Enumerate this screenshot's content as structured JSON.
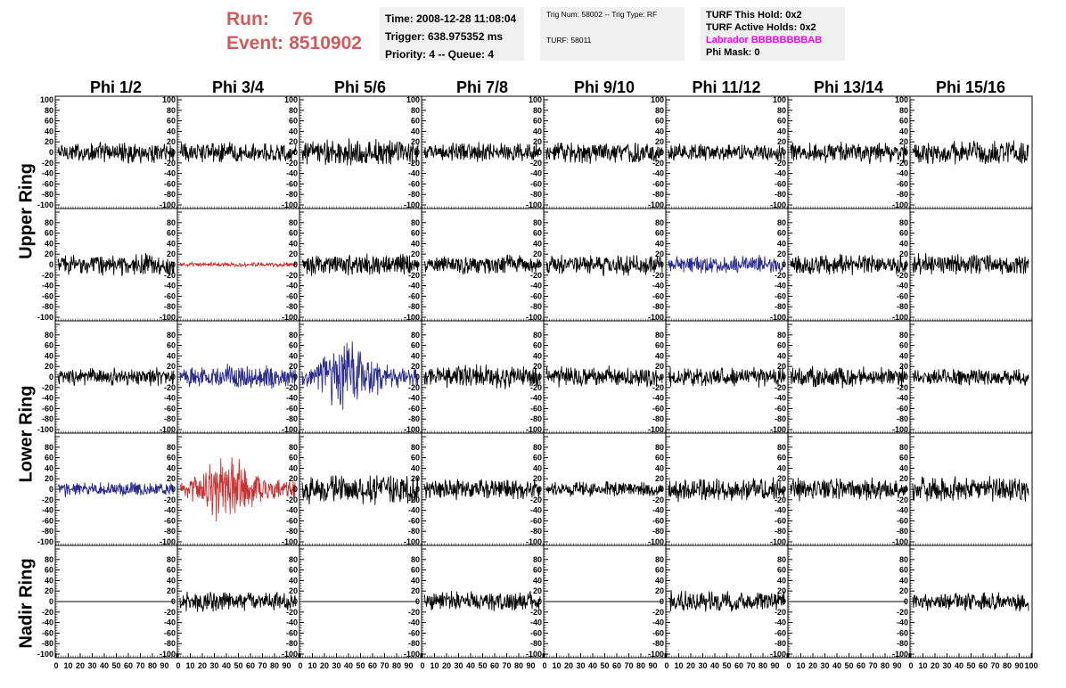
{
  "header": {
    "run_label": "Run:",
    "run_value": "76",
    "event_label": "Event:",
    "event_value": "8510902"
  },
  "info_box_1": {
    "time": "Time: 2008-12-28 11:08:04",
    "trigger": "Trigger: 638.975352 ms",
    "priority": "Priority: 4 -- Queue: 4"
  },
  "info_box_2": {
    "trig": "Trig Num: 58002 -- Trig Type: RF",
    "turf": "TURF: 58011"
  },
  "info_box_3": {
    "this_hold": "TURF This Hold: 0x2",
    "active_holds": "TURF Active Holds: 0x2",
    "labrador": "Labrador BBBBBBBBAB",
    "phi_mask": "Phi Mask: 0"
  },
  "columns": [
    "Phi 1/2",
    "Phi 3/4",
    "Phi 5/6",
    "Phi 7/8",
    "Phi 9/10",
    "Phi 11/12",
    "Phi 13/14",
    "Phi 15/16"
  ],
  "row_labels": {
    "upper": "Upper Ring",
    "lower": "Lower Ring",
    "nadir": "Nadir Ring"
  },
  "chart_data": {
    "type": "line",
    "ylim": [
      -100,
      100
    ],
    "xlim": [
      0,
      100
    ],
    "y_ticks": [
      -100,
      -80,
      -60,
      -40,
      -20,
      0,
      20,
      40,
      60,
      80,
      100
    ],
    "y_tick_labels": [
      "-100",
      "-80",
      "-60",
      "-40",
      "-20",
      "0",
      "20",
      "40",
      "60",
      "80",
      "100"
    ],
    "x_ticks": [
      0,
      10,
      20,
      30,
      40,
      50,
      60,
      70,
      80,
      90,
      100
    ],
    "x_tick_labels": [
      "0",
      "10",
      "20",
      "30",
      "40",
      "50",
      "60",
      "70",
      "80",
      "90",
      "100"
    ],
    "colors": {
      "normal": "#000000",
      "blue": "#2a2a8c",
      "red": "#c83232"
    },
    "panels": [
      {
        "row": 0,
        "col": 0,
        "color": "normal",
        "amplitude": 14
      },
      {
        "row": 0,
        "col": 1,
        "color": "normal",
        "amplitude": 14
      },
      {
        "row": 0,
        "col": 2,
        "color": "normal",
        "amplitude": 18
      },
      {
        "row": 0,
        "col": 3,
        "color": "normal",
        "amplitude": 13
      },
      {
        "row": 0,
        "col": 4,
        "color": "normal",
        "amplitude": 15
      },
      {
        "row": 0,
        "col": 5,
        "color": "normal",
        "amplitude": 12
      },
      {
        "row": 0,
        "col": 6,
        "color": "normal",
        "amplitude": 14
      },
      {
        "row": 0,
        "col": 7,
        "color": "normal",
        "amplitude": 16
      },
      {
        "row": 1,
        "col": 0,
        "color": "normal",
        "amplitude": 14
      },
      {
        "row": 1,
        "col": 1,
        "color": "red",
        "amplitude": 3
      },
      {
        "row": 1,
        "col": 2,
        "color": "normal",
        "amplitude": 15
      },
      {
        "row": 1,
        "col": 3,
        "color": "normal",
        "amplitude": 14
      },
      {
        "row": 1,
        "col": 4,
        "color": "normal",
        "amplitude": 14
      },
      {
        "row": 1,
        "col": 5,
        "color": "blue",
        "amplitude": 12
      },
      {
        "row": 1,
        "col": 6,
        "color": "normal",
        "amplitude": 14
      },
      {
        "row": 1,
        "col": 7,
        "color": "normal",
        "amplitude": 15
      },
      {
        "row": 2,
        "col": 0,
        "color": "normal",
        "amplitude": 12
      },
      {
        "row": 2,
        "col": 1,
        "color": "blue",
        "amplitude": 16
      },
      {
        "row": 2,
        "col": 2,
        "color": "blue",
        "amplitude": 40
      },
      {
        "row": 2,
        "col": 3,
        "color": "normal",
        "amplitude": 16
      },
      {
        "row": 2,
        "col": 4,
        "color": "normal",
        "amplitude": 14
      },
      {
        "row": 2,
        "col": 5,
        "color": "normal",
        "amplitude": 13
      },
      {
        "row": 2,
        "col": 6,
        "color": "normal",
        "amplitude": 14
      },
      {
        "row": 2,
        "col": 7,
        "color": "normal",
        "amplitude": 11
      },
      {
        "row": 3,
        "col": 0,
        "color": "blue",
        "amplitude": 10
      },
      {
        "row": 3,
        "col": 1,
        "color": "red",
        "amplitude": 38
      },
      {
        "row": 3,
        "col": 2,
        "color": "normal",
        "amplitude": 20
      },
      {
        "row": 3,
        "col": 3,
        "color": "normal",
        "amplitude": 14
      },
      {
        "row": 3,
        "col": 4,
        "color": "normal",
        "amplitude": 10
      },
      {
        "row": 3,
        "col": 5,
        "color": "normal",
        "amplitude": 16
      },
      {
        "row": 3,
        "col": 6,
        "color": "normal",
        "amplitude": 15
      },
      {
        "row": 3,
        "col": 7,
        "color": "normal",
        "amplitude": 17
      },
      {
        "row": 4,
        "col": 0,
        "color": "normal",
        "amplitude": 0
      },
      {
        "row": 4,
        "col": 1,
        "color": "normal",
        "amplitude": 13
      },
      {
        "row": 4,
        "col": 2,
        "color": "normal",
        "amplitude": 0
      },
      {
        "row": 4,
        "col": 3,
        "color": "normal",
        "amplitude": 13
      },
      {
        "row": 4,
        "col": 4,
        "color": "normal",
        "amplitude": 0
      },
      {
        "row": 4,
        "col": 5,
        "color": "normal",
        "amplitude": 15
      },
      {
        "row": 4,
        "col": 6,
        "color": "normal",
        "amplitude": 0
      },
      {
        "row": 4,
        "col": 7,
        "color": "normal",
        "amplitude": 13
      }
    ]
  }
}
